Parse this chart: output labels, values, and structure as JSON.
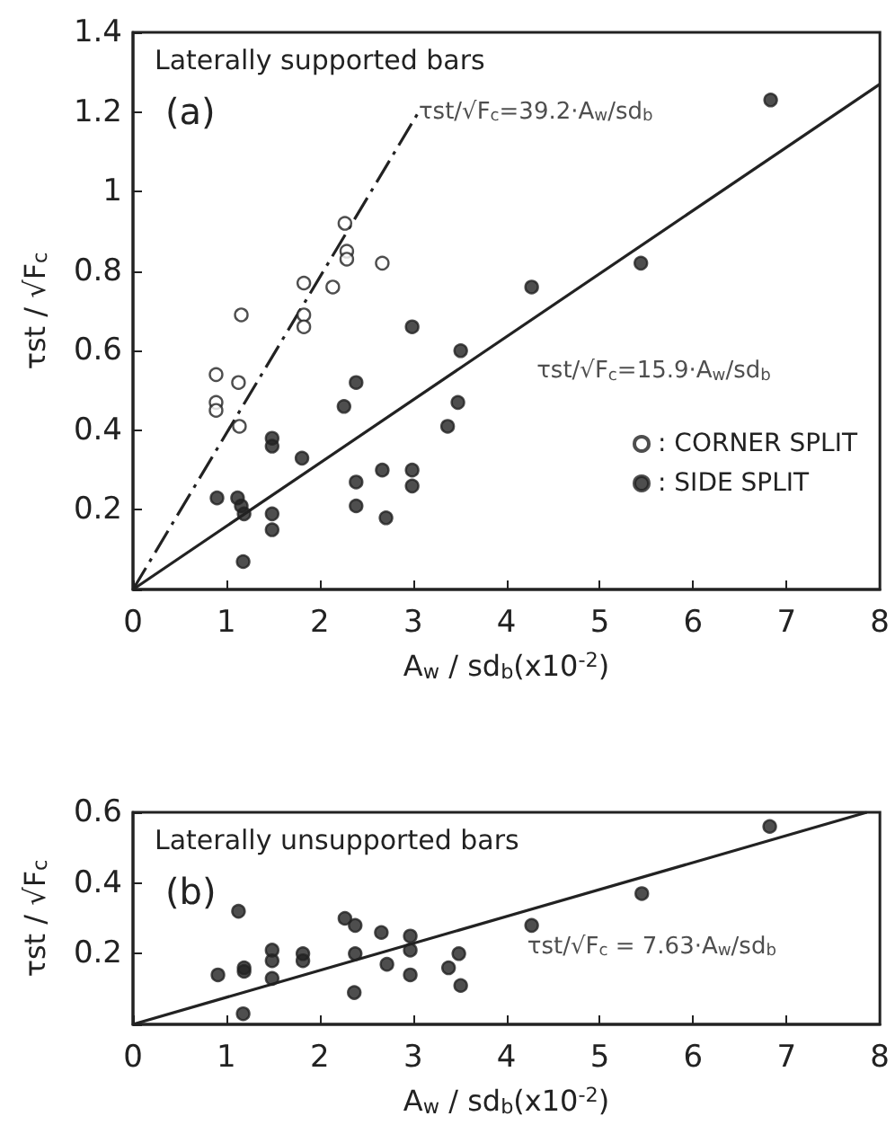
{
  "chart_data": [
    {
      "type": "scatter",
      "ylabel": "τst / √F$_{c}$",
      "xlabel": "A$_{w}$ / sd$_{b}$(x10$^{-2}$)",
      "xlim": [
        0,
        8
      ],
      "xticks": [
        0,
        1,
        2,
        3,
        4,
        5,
        6,
        7,
        8
      ],
      "ylim": [
        0,
        1.4
      ],
      "yticks": [
        {
          "value": 0,
          "label": null
        },
        0.2,
        0.4,
        0.6,
        0.8,
        1.0,
        1.2,
        1.4
      ],
      "grid": false,
      "legend": "right",
      "annotations": [
        "Laterally supported bars",
        "(a)",
        {
          "text": "τst/√F$_{c}$=39.2·A$_{w}$/sd$_{b}$",
          "x": 3.06,
          "y": 1.2
        },
        {
          "text": "τst/√F$_{c}$=15.9·A$_{w}$/sd$_{b}$",
          "x": 3.9,
          "y": 0.62
        }
      ],
      "series": [
        {
          "name": ": CORNER SPLIT",
          "color": "#ffffff",
          "marker": "circle",
          "x": [
            0.89,
            0.89,
            0.89,
            1.13,
            1.16,
            1.14,
            1.83,
            1.83,
            1.83,
            2.14,
            2.27,
            2.29,
            2.29,
            2.67
          ],
          "values": [
            0.54,
            0.47,
            0.45,
            0.52,
            0.69,
            0.41,
            0.77,
            0.69,
            0.66,
            0.76,
            0.92,
            0.85,
            0.83,
            0.82
          ]
        },
        {
          "name": ": SIDE SPLIT",
          "color": "#222222",
          "marker": "circle",
          "x": [
            0.9,
            1.12,
            1.16,
            1.19,
            1.18,
            1.49,
            1.49,
            1.49,
            1.49,
            1.81,
            2.26,
            2.39,
            2.39,
            2.39,
            2.67,
            2.71,
            2.99,
            2.99,
            2.99,
            3.37,
            3.48,
            3.51,
            4.27,
            5.44,
            6.83
          ],
          "values": [
            0.23,
            0.23,
            0.21,
            0.19,
            0.07,
            0.38,
            0.36,
            0.19,
            0.15,
            0.33,
            0.46,
            0.52,
            0.27,
            0.21,
            0.3,
            0.18,
            0.66,
            0.3,
            0.26,
            0.41,
            0.47,
            0.6,
            0.76,
            0.82,
            1.23
          ]
        },
        {
          "type": "line",
          "color": "#222222",
          "line_style": "dashed",
          "x": [
            0,
            3.06
          ],
          "values": [
            0,
            1.2
          ]
        },
        {
          "type": "line",
          "color": "#222222",
          "line_style": "solid",
          "x": [
            0,
            8
          ],
          "values": [
            0,
            1.27
          ]
        }
      ]
    },
    {
      "type": "scatter",
      "ylabel": "τst / √F$_{c}$",
      "xlabel": "A$_{w}$ / sd$_{b}$(x10$^{-2}$)",
      "xlim": [
        0,
        8
      ],
      "xticks": [
        0,
        1,
        2,
        3,
        4,
        5,
        6,
        7,
        8
      ],
      "ylim": [
        0,
        0.6
      ],
      "yticks": [
        {
          "value": 0,
          "label": null
        },
        0.2,
        0.4,
        0.6
      ],
      "grid": false,
      "annotations": [
        "Laterally unsupported bars",
        "(b)",
        {
          "text": "τst/√F$_{c}$ = 7.63·A$_{w}$/sd$_{b}$",
          "x": 3.8,
          "y": 0.29
        }
      ],
      "series": [
        {
          "color": "#222222",
          "marker": "circle",
          "x": [
            0.91,
            1.13,
            1.19,
            1.19,
            1.18,
            1.49,
            1.49,
            1.49,
            1.82,
            1.82,
            2.27,
            2.38,
            2.38,
            2.37,
            2.66,
            2.72,
            2.97,
            2.97,
            2.97,
            3.38,
            3.49,
            3.51,
            4.27,
            5.45,
            6.82
          ],
          "values": [
            0.14,
            0.32,
            0.16,
            0.15,
            0.03,
            0.21,
            0.18,
            0.13,
            0.2,
            0.18,
            0.3,
            0.28,
            0.2,
            0.09,
            0.26,
            0.17,
            0.25,
            0.21,
            0.14,
            0.16,
            0.2,
            0.11,
            0.28,
            0.37,
            0.56
          ]
        },
        {
          "type": "line",
          "color": "#222222",
          "line_style": "solid",
          "x": [
            0,
            7.86
          ],
          "values": [
            0,
            0.6
          ]
        }
      ]
    }
  ]
}
